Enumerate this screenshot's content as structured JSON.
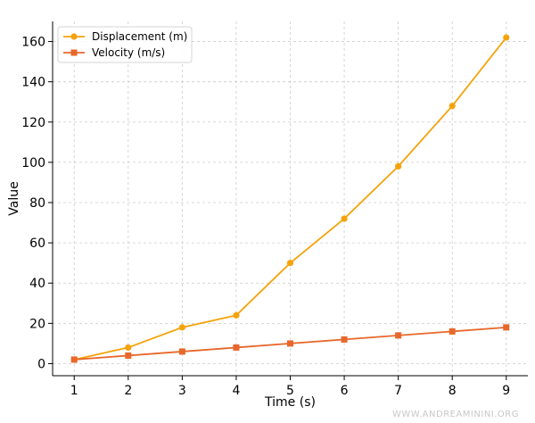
{
  "chart_data": {
    "type": "line",
    "x": [
      1,
      2,
      3,
      4,
      5,
      6,
      7,
      8,
      9
    ],
    "xlabel": "Time (s)",
    "ylabel": "Value",
    "xlim": [
      0.6,
      9.4
    ],
    "ylim": [
      -6,
      170
    ],
    "xticks": [
      1,
      2,
      3,
      4,
      5,
      6,
      7,
      8,
      9
    ],
    "yticks": [
      0,
      20,
      40,
      60,
      80,
      100,
      120,
      140,
      160
    ],
    "grid": true,
    "legend_position": "top-left",
    "series": [
      {
        "name": "Displacement (m)",
        "values": [
          2,
          8,
          18,
          24,
          50,
          72,
          98,
          128,
          162
        ],
        "color": "#f5a30b",
        "marker": "circle"
      },
      {
        "name": "Velocity (m/s)",
        "values": [
          2,
          4,
          6,
          8,
          10,
          12,
          14,
          16,
          18
        ],
        "color": "#e8672a",
        "marker": "square"
      }
    ]
  },
  "watermark": "WWW.ANDREAMININI.ORG"
}
